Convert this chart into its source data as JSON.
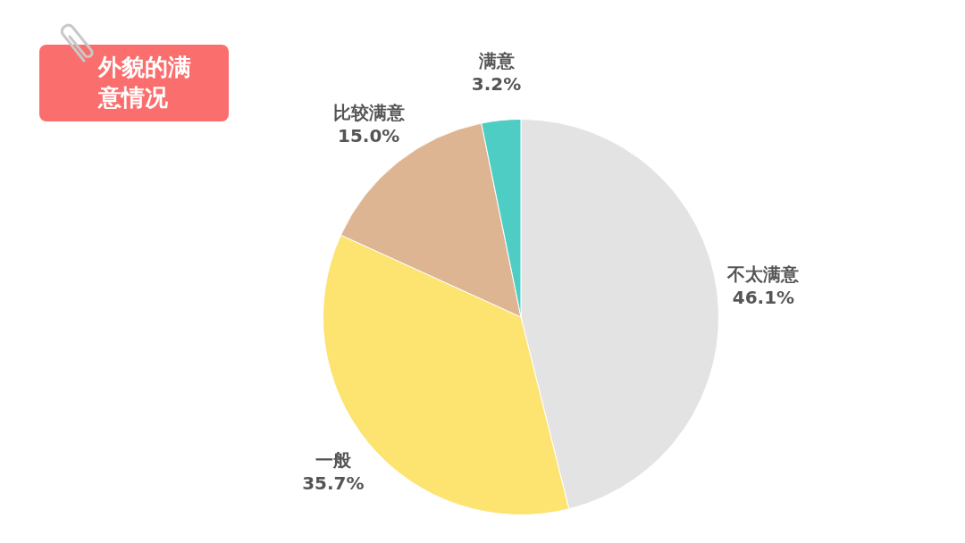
{
  "chart_data": {
    "type": "pie",
    "title": "外貌的满意情况",
    "categories": [
      "不太满意",
      "一般",
      "比较满意",
      "满意"
    ],
    "values": [
      46.1,
      35.7,
      15.0,
      3.2
    ],
    "value_labels": [
      "46.1%",
      "35.7%",
      "15.0%",
      "3.2%"
    ],
    "colors": [
      "#e3e3e3",
      "#fde36f",
      "#deb592",
      "#4ecdc4"
    ],
    "legend": false
  }
}
